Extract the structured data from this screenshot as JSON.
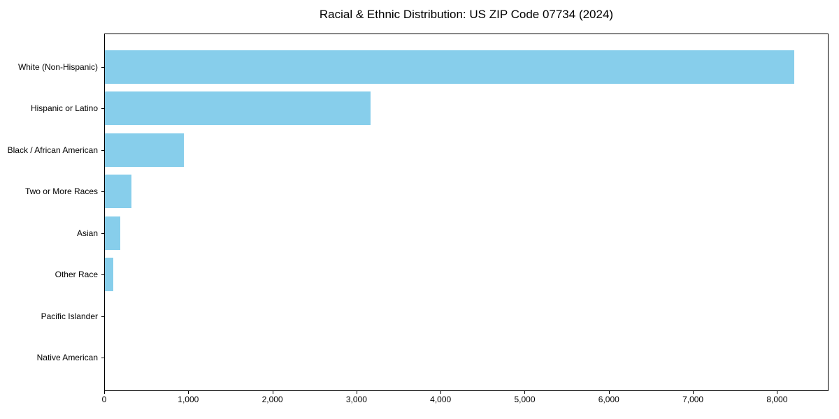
{
  "chart_data": {
    "type": "bar",
    "orientation": "horizontal",
    "title": "Racial & Ethnic Distribution: US ZIP Code 07734 (2024)",
    "categories": [
      "White (Non-Hispanic)",
      "Hispanic or Latino",
      "Black / African American",
      "Two or More Races",
      "Asian",
      "Other Race",
      "Pacific Islander",
      "Native American"
    ],
    "values": [
      8200,
      3160,
      940,
      320,
      180,
      100,
      0,
      0
    ],
    "xlabel": "",
    "ylabel": "",
    "xlim": [
      0,
      8612
    ],
    "x_tick_values": [
      0,
      1000,
      2000,
      3000,
      4000,
      5000,
      6000,
      7000,
      8000
    ],
    "x_tick_labels": [
      "0",
      "1,000",
      "2,000",
      "3,000",
      "4,000",
      "5,000",
      "6,000",
      "7,000",
      "8,000"
    ],
    "bar_color": "#87CEEB",
    "grid": false,
    "legend": false,
    "background_color": "#ffffff",
    "axis_color": "#000000"
  }
}
